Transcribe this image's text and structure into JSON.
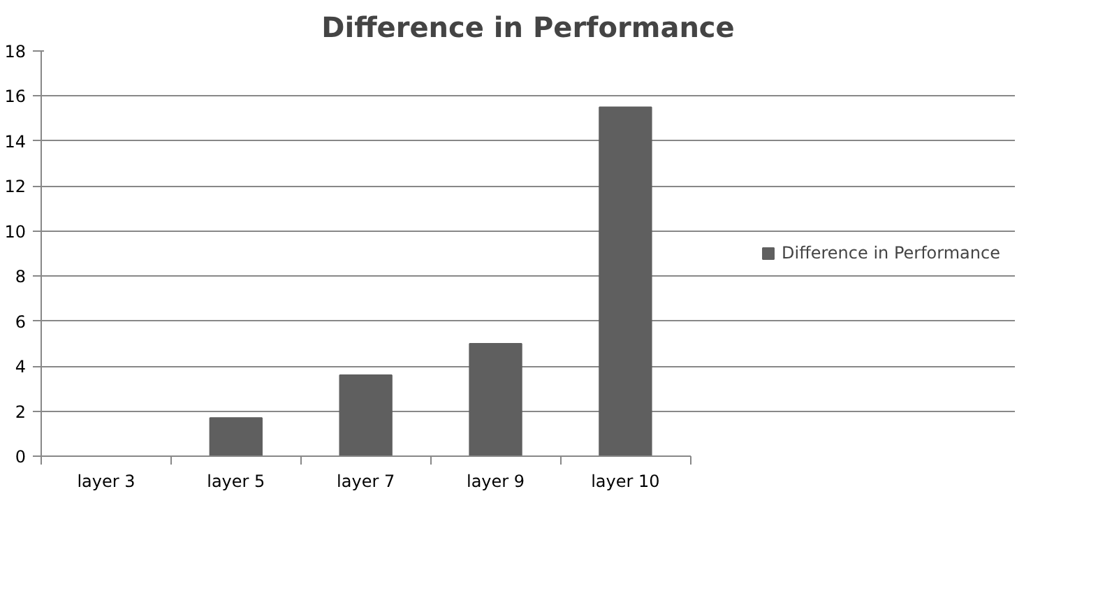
{
  "chart_data": {
    "type": "bar",
    "title": "Difference in Performance",
    "categories": [
      "layer 3",
      "layer 5",
      "layer 7",
      "layer 9",
      "layer 10"
    ],
    "series": [
      {
        "name": "Difference in Performance",
        "color": "#5f5f5f",
        "values": [
          0,
          1.7,
          3.6,
          5.0,
          15.5
        ]
      }
    ],
    "ylim": [
      0,
      18
    ],
    "yticks": [
      0,
      2,
      4,
      6,
      8,
      10,
      12,
      14,
      16,
      18
    ],
    "grid": "y",
    "legend": "right"
  }
}
